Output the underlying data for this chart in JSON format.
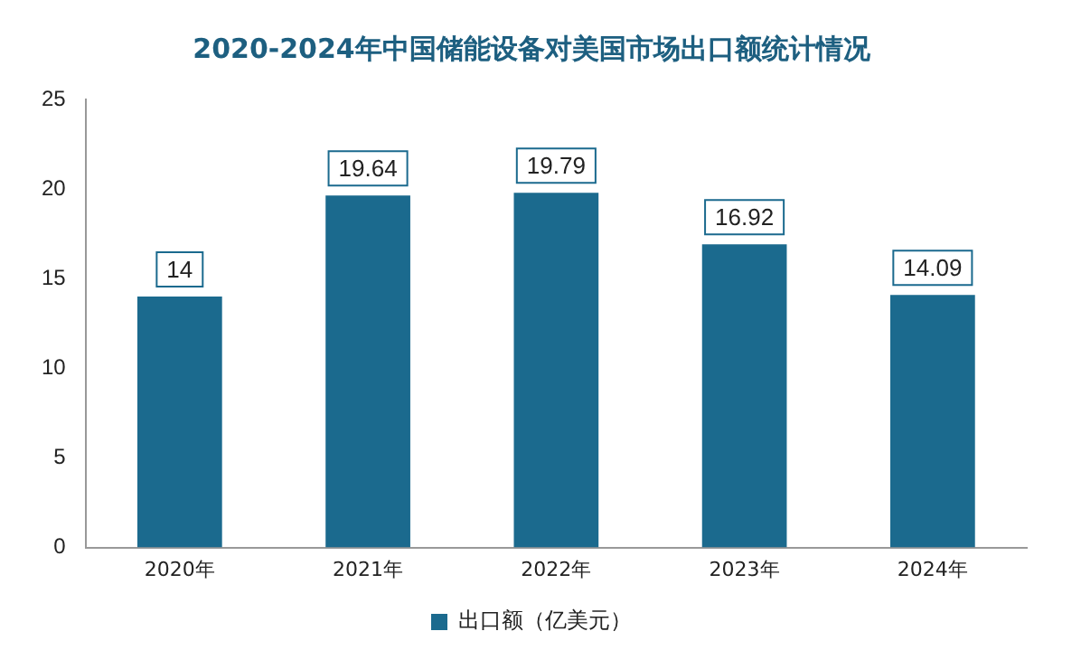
{
  "chart_data": {
    "type": "bar",
    "title": "2020-2024年中国储能设备对美国市场出口额统计情况",
    "categories": [
      "2020年",
      "2021年",
      "2022年",
      "2023年",
      "2024年"
    ],
    "series": [
      {
        "name": "出口额（亿美元）",
        "color": "#1b6a8e",
        "values": [
          14,
          19.64,
          19.79,
          16.92,
          14.09
        ]
      }
    ],
    "ylim": [
      0,
      25
    ],
    "yticks": [
      0,
      5,
      10,
      15,
      20,
      25
    ],
    "grid": false,
    "legend": "bottom",
    "data_labels": true
  }
}
